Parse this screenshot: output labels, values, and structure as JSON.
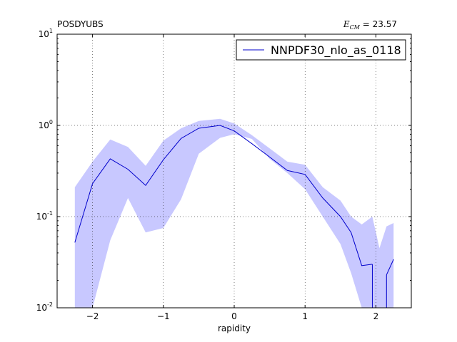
{
  "chart_data": {
    "type": "line",
    "title_left": "POSDYUBS",
    "title_right_prefix": "E",
    "title_right_subscript": "CM",
    "title_right_value": " = 23.57",
    "xlabel": "rapidity",
    "ylabel": "",
    "xlim": [
      -2.5,
      2.5
    ],
    "ylim": [
      0.01,
      10
    ],
    "yscale": "log",
    "grid": true,
    "legend_position": "top-right",
    "x_ticks": [
      {
        "value": -2,
        "label": "−2"
      },
      {
        "value": -1,
        "label": "−1"
      },
      {
        "value": 0,
        "label": "0"
      },
      {
        "value": 1,
        "label": "1"
      },
      {
        "value": 2,
        "label": "2"
      }
    ],
    "y_ticks": [
      {
        "value": 0.01,
        "base": "10",
        "exp": "-2"
      },
      {
        "value": 0.1,
        "base": "10",
        "exp": "-1"
      },
      {
        "value": 1,
        "base": "10",
        "exp": "0"
      },
      {
        "value": 10,
        "base": "10",
        "exp": "1"
      }
    ],
    "series": [
      {
        "name": "NNPDF30_nlo_as_0118",
        "color": "#0000cc",
        "band_color": "#c8c8ff",
        "x": [
          -2.25,
          -2.0,
          -1.75,
          -1.5,
          -1.25,
          -1.0,
          -0.75,
          -0.5,
          -0.2,
          0.0,
          0.25,
          0.5,
          0.75,
          1.0,
          1.25,
          1.5,
          1.65,
          1.8,
          1.95,
          2.05,
          2.15,
          2.25
        ],
        "values": [
          0.052,
          0.23,
          0.43,
          0.33,
          0.22,
          0.42,
          0.72,
          0.93,
          1.0,
          0.87,
          0.63,
          0.45,
          0.32,
          0.29,
          0.16,
          0.1,
          0.067,
          0.029,
          0.03,
          null,
          0.023,
          0.034
        ],
        "upper": [
          0.21,
          0.4,
          0.7,
          0.58,
          0.36,
          0.68,
          0.93,
          1.12,
          1.18,
          1.05,
          0.78,
          0.56,
          0.4,
          0.37,
          0.21,
          0.15,
          0.1,
          0.082,
          0.1,
          0.045,
          0.078,
          0.085
        ],
        "lower": [
          0.01,
          0.01,
          0.055,
          0.16,
          0.067,
          0.075,
          0.155,
          0.49,
          0.73,
          0.8,
          0.71,
          0.43,
          0.3,
          0.2,
          0.1,
          0.05,
          0.024,
          0.01,
          0.01,
          0.01,
          0.01,
          0.01
        ]
      }
    ]
  }
}
